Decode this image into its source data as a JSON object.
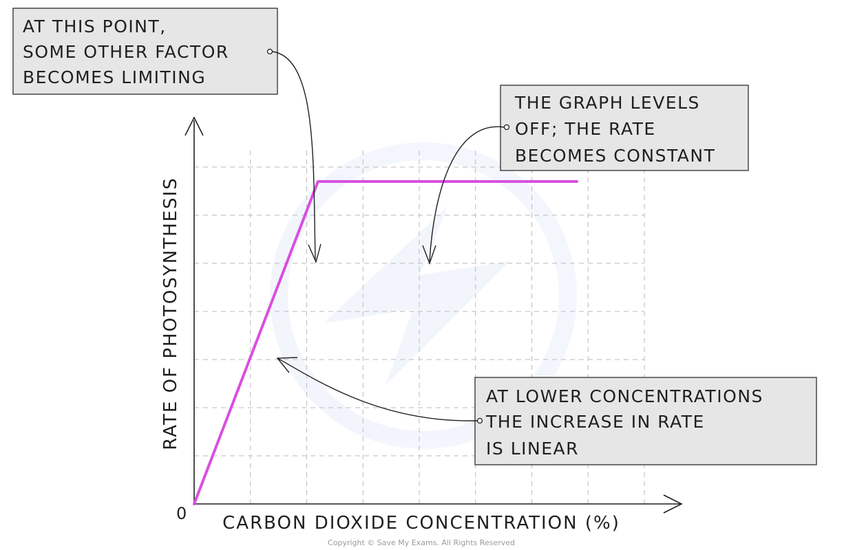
{
  "chart_data": {
    "type": "line",
    "title": "",
    "xlabel": "CARBON DIOXIDE CONCENTRATION (%)",
    "ylabel": "RATE OF PHOTOSYNTHESIS",
    "origin_label": "0",
    "grid": true,
    "grid_style": "dashed",
    "x": [
      0,
      2.2,
      6.8
    ],
    "y": [
      0,
      6.7,
      6.7
    ],
    "xlim": [
      0,
      8
    ],
    "ylim": [
      0,
      7.4
    ],
    "line_color": "#d94fe0",
    "annotations": [
      {
        "id": "limiting",
        "lines": [
          "AT THIS POINT,",
          "SOME OTHER FACTOR",
          "BECOMES LIMITING"
        ],
        "target": [
          2.2,
          6.7
        ]
      },
      {
        "id": "constant",
        "lines": [
          "THE GRAPH LEVELS",
          "OFF; THE RATE",
          "BECOMES CONSTANT"
        ],
        "target": [
          4.2,
          6.7
        ]
      },
      {
        "id": "linear",
        "lines": [
          "AT LOWER CONCENTRATIONS",
          "THE  INCREASE IN RATE",
          "IS LINEAR"
        ],
        "target": [
          1.45,
          4.4
        ]
      }
    ]
  },
  "footer": {
    "copyright": "Copyright © Save My Exams. All Rights Reserved"
  }
}
